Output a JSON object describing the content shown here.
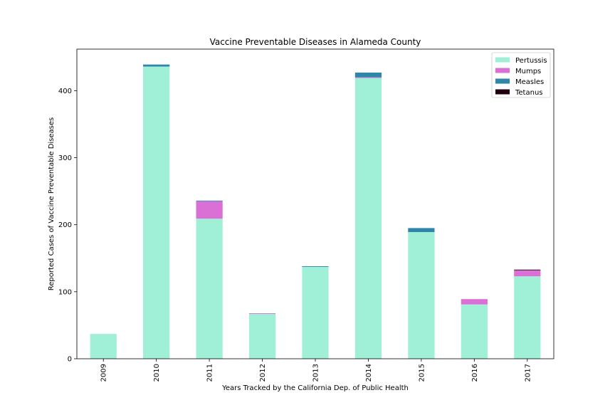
{
  "chart_data": {
    "type": "bar",
    "stacked": true,
    "title": "Vaccine Preventable Diseases in Alameda County",
    "xlabel": "Years Tracked by the California Dep. of Public Health",
    "ylabel": "Reported Cases of Vaccine Preventable Diseases",
    "categories": [
      "2009",
      "2010",
      "2011",
      "2012",
      "2013",
      "2014",
      "2015",
      "2016",
      "2017"
    ],
    "ylim": [
      0,
      462
    ],
    "yticks": [
      0,
      100,
      200,
      300,
      400
    ],
    "grid": false,
    "legend_position": "top-right",
    "series": [
      {
        "name": "Pertussis",
        "color": "#a0f0d8",
        "values": [
          37,
          436,
          209,
          67,
          137,
          419,
          189,
          81,
          123
        ]
      },
      {
        "name": "Mumps",
        "color": "#da70d6",
        "values": [
          0,
          0,
          26,
          1,
          0,
          1,
          0,
          8,
          9
        ]
      },
      {
        "name": "Measles",
        "color": "#2e86a8",
        "values": [
          0,
          3,
          1,
          0,
          1,
          7,
          6,
          0,
          0
        ]
      },
      {
        "name": "Tetanus",
        "color": "#200010",
        "values": [
          0,
          0,
          0,
          0,
          0,
          0,
          0,
          0,
          1
        ]
      }
    ]
  }
}
